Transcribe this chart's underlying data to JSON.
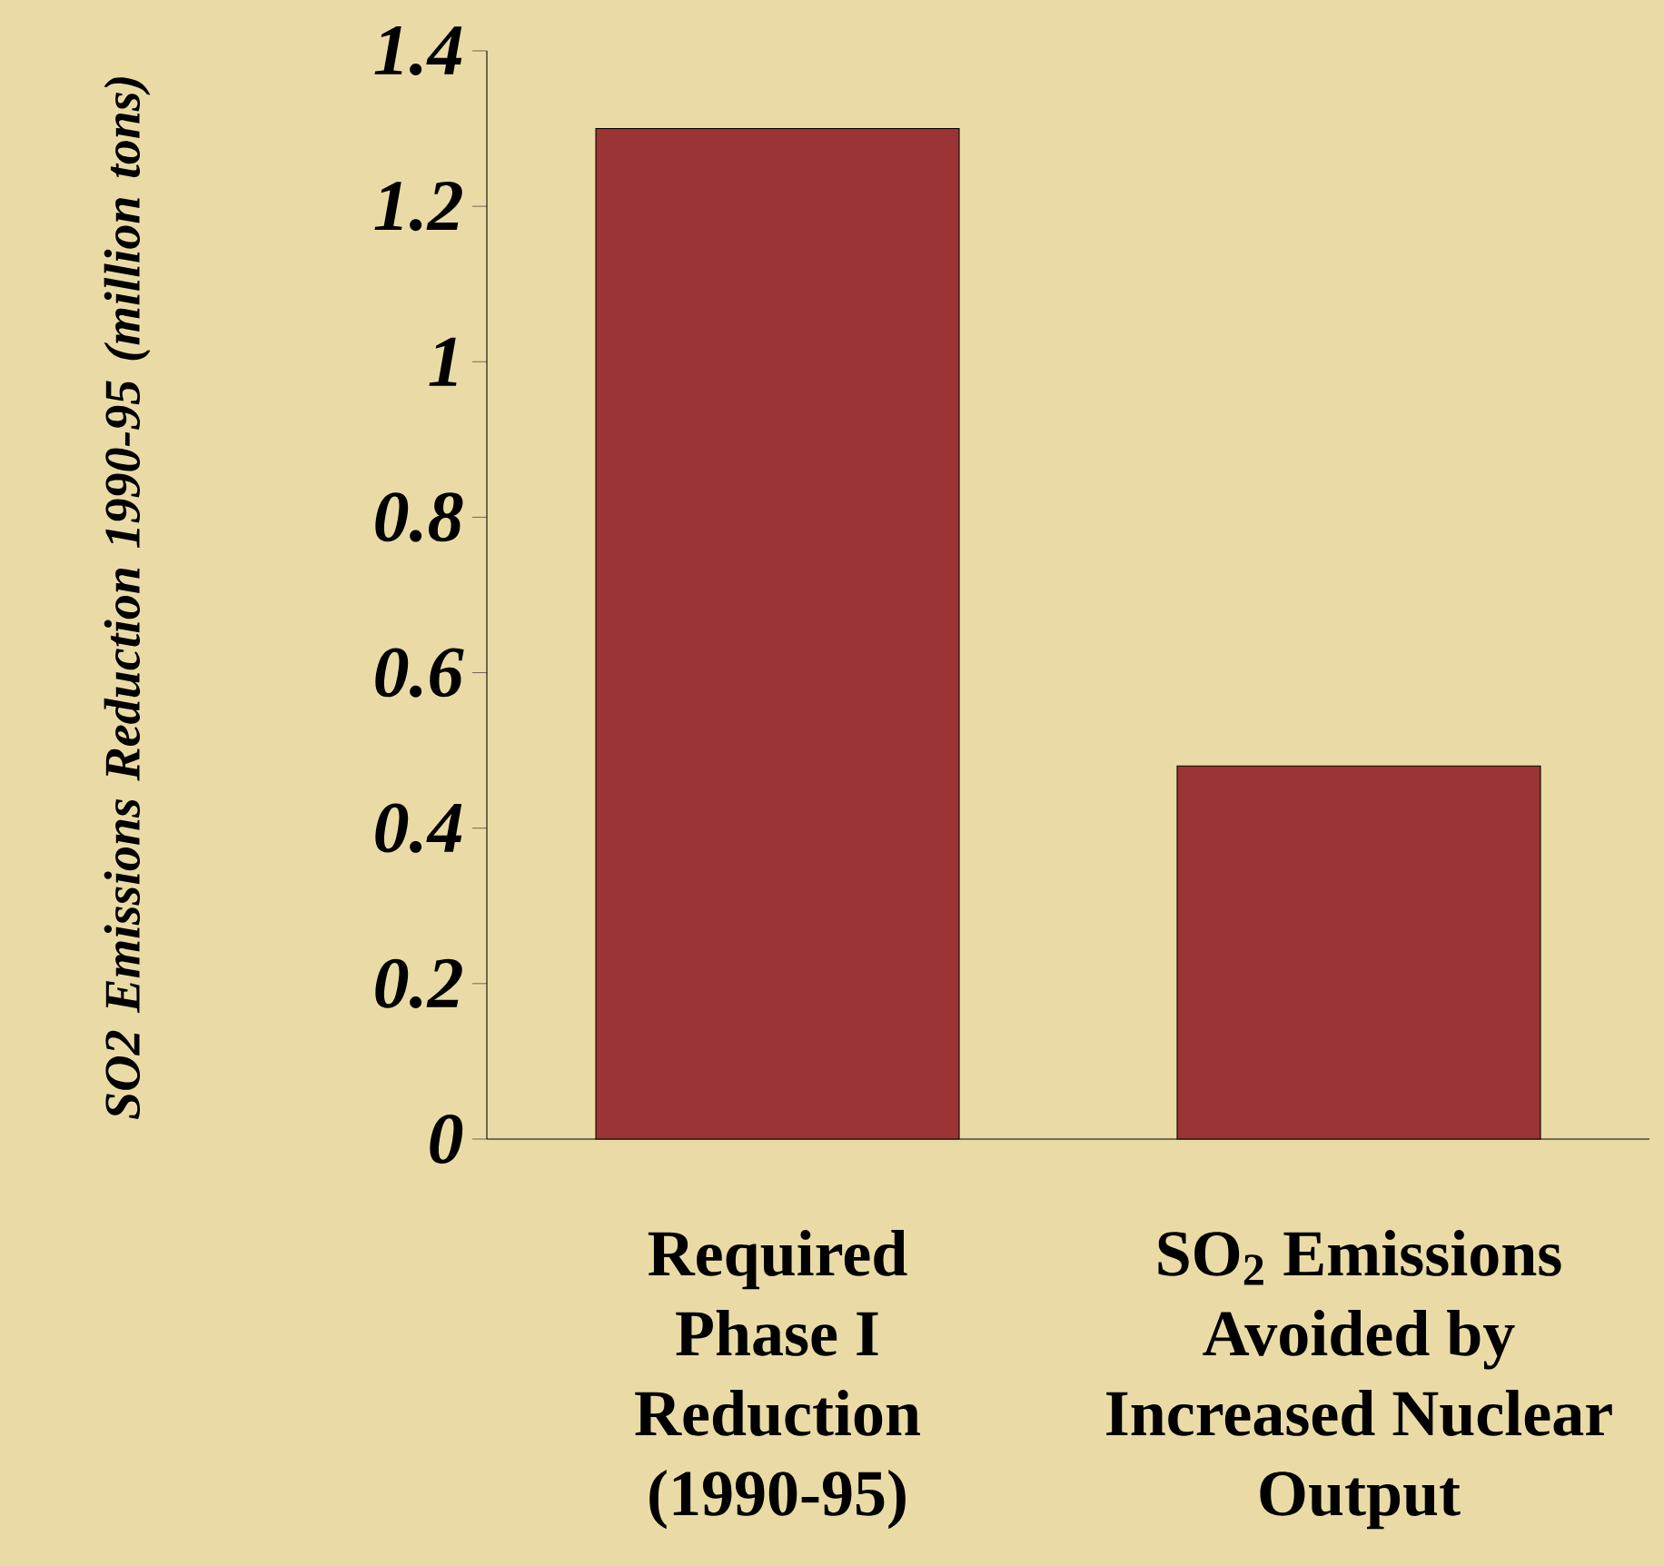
{
  "chart_data": {
    "type": "bar",
    "ylabel": "SO2 Emissions Reduction 1990-95 (million tons)",
    "categories": [
      "Required Phase I Reduction (1990-95)",
      "SO$_{2}$ Emissions Avoided by Increased Nuclear Output"
    ],
    "values": [
      1.3,
      0.48
    ],
    "color": "#9b3535",
    "ylim": [
      0,
      1.4
    ],
    "yticks": [
      0,
      0.2,
      0.4,
      0.6,
      0.8,
      1,
      1.2,
      1.4
    ],
    "grid": false
  }
}
